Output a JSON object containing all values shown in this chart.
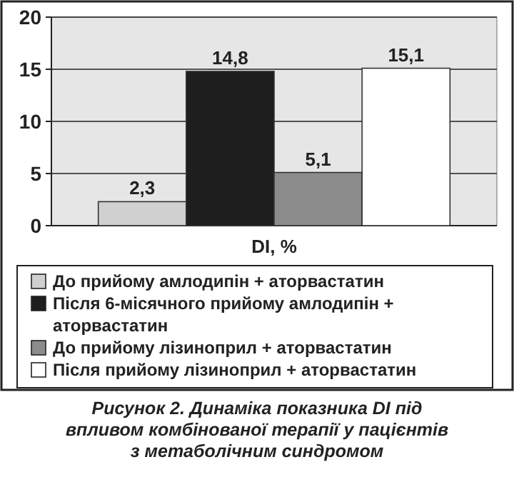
{
  "chart_data": {
    "type": "bar",
    "title": "Рисунок 2. Динаміка показника DI під впливом комбінованої терапії у пацієнтів з метаболічним синдромом",
    "xlabel": "DI, %",
    "categories": [
      null
    ],
    "series": [
      {
        "name": "До прийому амлодипін + аторвастатин",
        "color": "#d0d0d0",
        "values": [
          2.3
        ],
        "value_labels": [
          "2,3"
        ]
      },
      {
        "name": "Після 6-місячного прийому амлодипін + аторвастатин",
        "color": "#1e1e1e",
        "values": [
          14.8
        ],
        "value_labels": [
          "14,8"
        ]
      },
      {
        "name": "До прийому лізиноприл + аторвастатин",
        "color": "#8c8c8c",
        "values": [
          5.1
        ],
        "value_labels": [
          "5,1"
        ]
      },
      {
        "name": "Після прийому лізиноприл + аторвастатин",
        "color": "#ffffff",
        "values": [
          15.1
        ],
        "value_labels": [
          "15,1"
        ]
      }
    ],
    "ylim": [
      0,
      20
    ],
    "yticks": [
      0,
      5,
      10,
      15,
      20
    ],
    "grid": "y",
    "legend": "bottom"
  }
}
